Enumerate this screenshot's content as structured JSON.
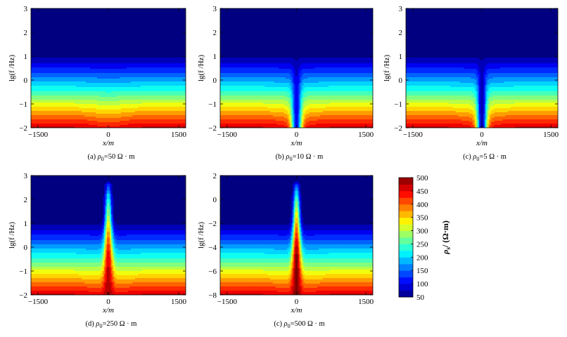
{
  "chart_data": {
    "type": "heatmap",
    "x_ticks": [
      "−1500",
      "0",
      "1500"
    ],
    "x_tick_values": [
      -1500,
      0,
      1500
    ],
    "xlim": [
      -1650,
      1650
    ],
    "colormap": "jet",
    "colorbar": {
      "label": "ρ",
      "label_sub": "s",
      "label_unit": "/ (Ω·m)",
      "ticks": [
        "500",
        "450",
        "400",
        "350",
        "300",
        "250",
        "200",
        "150",
        "100",
        "50"
      ],
      "range": [
        50,
        500
      ]
    },
    "panels": [
      {
        "id": "a",
        "caption_prefix": "(a) ",
        "caption_sym": "ρ",
        "caption_sub": "0",
        "caption_rest": "=50 Ω · m",
        "ylim": [
          -2,
          3
        ],
        "y_ticks": [
          "3",
          "2",
          "1",
          "0",
          "−1",
          "−2"
        ],
        "y_tick_values": [
          3,
          2,
          1,
          0,
          -1,
          -2
        ],
        "ylabel": "lg(f /Hz)",
        "xlabel": "x/m",
        "rho0": 50
      },
      {
        "id": "b",
        "caption_prefix": "(b) ",
        "caption_sym": "ρ",
        "caption_sub": "0",
        "caption_rest": "=10 Ω · m",
        "ylim": [
          -2,
          3
        ],
        "y_ticks": [
          "3",
          "2",
          "1",
          "0",
          "−1",
          "−2"
        ],
        "y_tick_values": [
          3,
          2,
          1,
          0,
          -1,
          -2
        ],
        "ylabel": "lg(f /Hz)",
        "xlabel": "x/m",
        "rho0": 10
      },
      {
        "id": "c",
        "caption_prefix": "(c) ",
        "caption_sym": "ρ",
        "caption_sub": "0",
        "caption_rest": "=5 Ω · m",
        "ylim": [
          -2,
          3
        ],
        "y_ticks": [
          "3",
          "2",
          "1",
          "0",
          "−1",
          "−2"
        ],
        "y_tick_values": [
          3,
          2,
          1,
          0,
          -1,
          -2
        ],
        "ylabel": "lg(f /Hz)",
        "xlabel": "x/m",
        "rho0": 5
      },
      {
        "id": "d",
        "caption_prefix": "(d) ",
        "caption_sym": "ρ",
        "caption_sub": "0",
        "caption_rest": "=250 Ω · m",
        "ylim": [
          -2,
          3
        ],
        "y_ticks": [
          "3",
          "2",
          "1",
          "0",
          "−1",
          "−2"
        ],
        "y_tick_values": [
          3,
          2,
          1,
          0,
          -1,
          -2
        ],
        "ylabel": "lg(f /Hz)",
        "xlabel": "x/m",
        "rho0": 250
      },
      {
        "id": "e",
        "caption_prefix": "(c) ",
        "caption_sym": "ρ",
        "caption_sub": "0",
        "caption_rest": "=500 Ω · m",
        "ylim": [
          -8,
          2
        ],
        "y_ticks": [
          "2",
          "0",
          "−2",
          "−4",
          "−6",
          "−8"
        ],
        "y_tick_values": [
          2,
          0,
          -2,
          -4,
          -6,
          -8
        ],
        "ylabel": "lg(f /Hz)",
        "xlabel": "x/m",
        "rho0": 500
      }
    ]
  }
}
